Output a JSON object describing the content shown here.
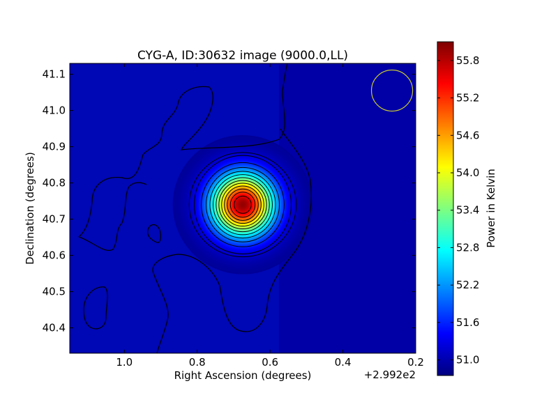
{
  "chart_data": {
    "type": "heatmap",
    "title": "CYG-A, ID:30632 image (9000.0,LL)",
    "xlabel": "Right Ascension (degrees)",
    "ylabel": "Declination (degrees)",
    "x_offset_label": "+2.992e2",
    "xlim": [
      1.15,
      0.2
    ],
    "ylim": [
      40.33,
      41.13
    ],
    "x_ticks": [
      1.0,
      0.8,
      0.6,
      0.4,
      0.2
    ],
    "y_ticks": [
      40.4,
      40.5,
      40.6,
      40.7,
      40.8,
      40.9,
      41.0,
      41.1
    ],
    "x_tick_labels": [
      "1.0",
      "0.8",
      "0.6",
      "0.4",
      "0.2"
    ],
    "y_tick_labels": [
      "40.4",
      "40.5",
      "40.6",
      "40.7",
      "40.8",
      "40.9",
      "41.0",
      "41.1"
    ],
    "source": {
      "ra": 0.675,
      "dec": 40.74,
      "sigma_ra": 0.06,
      "sigma_dec": 0.06
    },
    "colorbar": {
      "label": "Power in Kelvin",
      "colormap": "jet",
      "range": [
        50.75,
        56.1
      ],
      "ticks": [
        51.0,
        51.6,
        52.2,
        52.8,
        53.4,
        54.0,
        54.6,
        55.2,
        55.8
      ],
      "tick_labels": [
        "51.0",
        "51.6",
        "52.2",
        "52.8",
        "53.4",
        "54.0",
        "54.6",
        "55.2",
        "55.8"
      ]
    },
    "beam": {
      "ra": 0.265,
      "dec": 41.055,
      "color": "#c8c832"
    },
    "contour_color": "#000000"
  }
}
